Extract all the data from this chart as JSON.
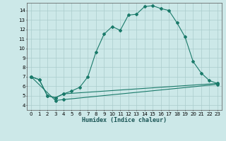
{
  "xlabel": "Humidex (Indice chaleur)",
  "bg_color": "#cce8e8",
  "grid_color": "#aacccc",
  "line_color": "#1a7a6a",
  "xlim": [
    -0.5,
    23.5
  ],
  "ylim": [
    3.5,
    14.8
  ],
  "xticks": [
    0,
    1,
    2,
    3,
    4,
    5,
    6,
    7,
    8,
    9,
    10,
    11,
    12,
    13,
    14,
    15,
    16,
    17,
    18,
    19,
    20,
    21,
    22,
    23
  ],
  "yticks": [
    4,
    5,
    6,
    7,
    8,
    9,
    10,
    11,
    12,
    13,
    14
  ],
  "series": [
    {
      "x": [
        0,
        1,
        2,
        3,
        4,
        5,
        6,
        7,
        8,
        9,
        10,
        11,
        12,
        13,
        14,
        15,
        16,
        17,
        18,
        19,
        20,
        21,
        22,
        23
      ],
      "y": [
        7.0,
        6.7,
        5.0,
        4.8,
        5.2,
        5.5,
        5.9,
        7.0,
        9.6,
        11.5,
        12.3,
        11.9,
        13.5,
        13.6,
        14.4,
        14.5,
        14.2,
        14.0,
        12.7,
        11.2,
        8.6,
        7.4,
        6.6,
        6.3
      ]
    },
    {
      "x": [
        0,
        1,
        2,
        3,
        4,
        23
      ],
      "y": [
        7.0,
        6.7,
        5.0,
        4.8,
        5.2,
        6.3
      ]
    },
    {
      "x": [
        0,
        3,
        4,
        23
      ],
      "y": [
        7.0,
        4.5,
        4.6,
        6.2
      ]
    }
  ]
}
